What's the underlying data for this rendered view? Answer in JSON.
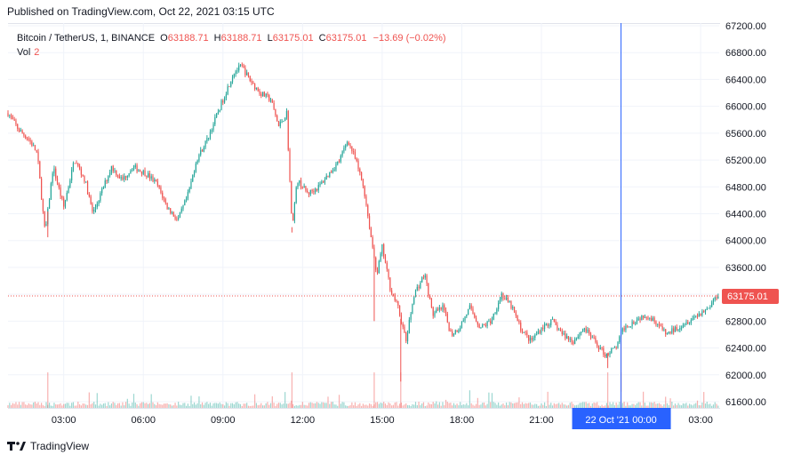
{
  "header": {
    "published": "Published on TradingView.com, Oct 22, 2021 03:15 UTC"
  },
  "legend": {
    "symbol": "Bitcoin / TetherUS, 1, BINANCE",
    "open_label": "O",
    "open": "63188.71",
    "high_label": "H",
    "high": "63188.71",
    "low_label": "L",
    "low": "63175.01",
    "close_label": "C",
    "close": "63175.01",
    "change": "−13.69 (−0.02%)",
    "vol_label": "Vol",
    "vol_value": "2"
  },
  "crosshair": {
    "time_label": "22 Oct '21   00:00"
  },
  "price_label": "63175.01",
  "footer": {
    "brand": "TradingView"
  },
  "colors": {
    "up": "#26a69a",
    "down": "#ef5350",
    "crosshair": "#2962ff",
    "grid": "#f0f3fa"
  },
  "chart_data": {
    "type": "candlestick",
    "y_axis": {
      "range": [
        61500,
        67200
      ],
      "ticks": [
        61600,
        62000,
        62400,
        62800,
        63200,
        63600,
        64000,
        64400,
        64800,
        65200,
        65600,
        66000,
        66400,
        66800,
        67200
      ],
      "tick_labels": [
        "61600.00",
        "62000.00",
        "62400.00",
        "62800.00",
        "63200.00",
        "63600.00",
        "64000.00",
        "64400.00",
        "64800.00",
        "65200.00",
        "65600.00",
        "66000.00",
        "66400.00",
        "66800.00",
        "67200.00"
      ]
    },
    "x_axis": {
      "tick_labels": [
        "03:00",
        "06:00",
        "09:00",
        "12:00",
        "15:00",
        "18:00",
        "21:00",
        "03:00"
      ],
      "ticks_hours": [
        3,
        6,
        9,
        12,
        15,
        18,
        21,
        27
      ],
      "range_hours": [
        0.9,
        27.7
      ]
    },
    "last_price": 63175.01,
    "crosshair_hour": 24.0,
    "path": [
      [
        0.9,
        65900
      ],
      [
        1.3,
        65650
      ],
      [
        1.7,
        65500
      ],
      [
        2.0,
        65300
      ],
      [
        2.3,
        64100
      ],
      [
        2.6,
        65100
      ],
      [
        3.0,
        64500
      ],
      [
        3.4,
        65200
      ],
      [
        3.8,
        64900
      ],
      [
        4.1,
        64400
      ],
      [
        4.4,
        64700
      ],
      [
        4.8,
        65100
      ],
      [
        5.2,
        64900
      ],
      [
        5.6,
        65100
      ],
      [
        6.1,
        65000
      ],
      [
        6.5,
        64850
      ],
      [
        6.9,
        64500
      ],
      [
        7.3,
        64300
      ],
      [
        7.7,
        64700
      ],
      [
        8.0,
        65200
      ],
      [
        8.4,
        65500
      ],
      [
        8.8,
        65900
      ],
      [
        9.1,
        66200
      ],
      [
        9.4,
        66500
      ],
      [
        9.7,
        66600
      ],
      [
        10.0,
        66400
      ],
      [
        10.4,
        66200
      ],
      [
        10.8,
        66100
      ],
      [
        11.1,
        65700
      ],
      [
        11.4,
        65900
      ],
      [
        11.6,
        64200
      ],
      [
        11.8,
        64900
      ],
      [
        12.2,
        64700
      ],
      [
        12.6,
        64800
      ],
      [
        13.0,
        65000
      ],
      [
        13.4,
        65200
      ],
      [
        13.7,
        65500
      ],
      [
        14.0,
        65200
      ],
      [
        14.3,
        64800
      ],
      [
        14.6,
        64000
      ],
      [
        14.8,
        63500
      ],
      [
        15.0,
        63900
      ],
      [
        15.3,
        63300
      ],
      [
        15.6,
        63000
      ],
      [
        15.9,
        62500
      ],
      [
        16.2,
        63200
      ],
      [
        16.6,
        63500
      ],
      [
        16.9,
        62900
      ],
      [
        17.3,
        63000
      ],
      [
        17.6,
        62600
      ],
      [
        17.9,
        62700
      ],
      [
        18.3,
        63000
      ],
      [
        18.7,
        62700
      ],
      [
        19.1,
        62800
      ],
      [
        19.5,
        63200
      ],
      [
        19.9,
        63000
      ],
      [
        20.2,
        62700
      ],
      [
        20.6,
        62500
      ],
      [
        21.0,
        62700
      ],
      [
        21.4,
        62800
      ],
      [
        21.8,
        62600
      ],
      [
        22.2,
        62500
      ],
      [
        22.6,
        62700
      ],
      [
        23.0,
        62500
      ],
      [
        23.4,
        62300
      ],
      [
        23.8,
        62400
      ],
      [
        24.1,
        62700
      ],
      [
        24.5,
        62800
      ],
      [
        24.9,
        62900
      ],
      [
        25.3,
        62800
      ],
      [
        25.7,
        62600
      ],
      [
        26.1,
        62700
      ],
      [
        26.5,
        62800
      ],
      [
        26.9,
        62900
      ],
      [
        27.3,
        63000
      ],
      [
        27.6,
        63180
      ]
    ],
    "spikes": [
      [
        2.4,
        64050
      ],
      [
        11.6,
        64120
      ],
      [
        14.7,
        62800
      ],
      [
        15.7,
        61900
      ],
      [
        23.5,
        62100
      ],
      [
        24.0,
        61750
      ]
    ]
  }
}
